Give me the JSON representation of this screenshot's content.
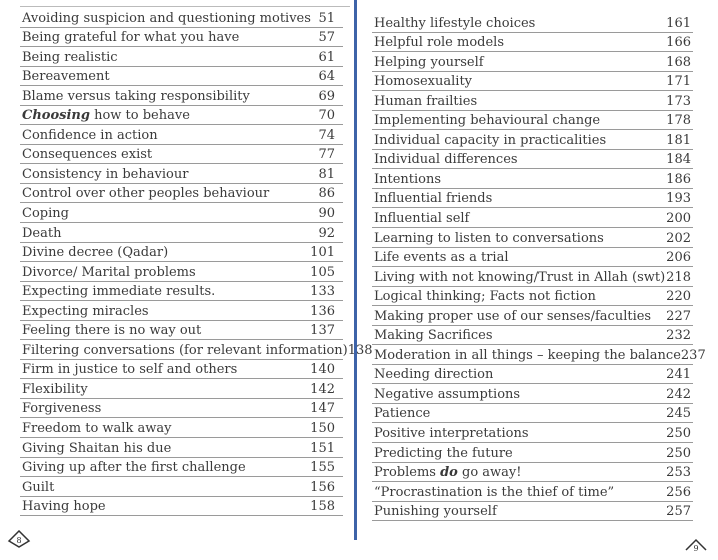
{
  "left_page": {
    "page_number": "8",
    "entries": [
      {
        "pre": "Avoiding suspicion and questioning motives",
        "em": "",
        "post": "",
        "page": "51"
      },
      {
        "pre": "Being grateful for what you have",
        "em": "",
        "post": "",
        "page": "57"
      },
      {
        "pre": "Being realistic",
        "em": "",
        "post": "",
        "page": "61"
      },
      {
        "pre": "Bereavement",
        "em": "",
        "post": "",
        "page": "64"
      },
      {
        "pre": "Blame versus taking responsibility",
        "em": "",
        "post": "",
        "page": "69"
      },
      {
        "pre": "",
        "em": "Choosing",
        "post": " how to behave",
        "page": "70"
      },
      {
        "pre": "Confidence in action",
        "em": "",
        "post": "",
        "page": "74"
      },
      {
        "pre": "Consequences exist",
        "em": "",
        "post": "",
        "page": "77"
      },
      {
        "pre": "Consistency in behaviour",
        "em": "",
        "post": "",
        "page": "81"
      },
      {
        "pre": "Control over other peoples behaviour",
        "em": "",
        "post": "",
        "page": "86"
      },
      {
        "pre": "Coping",
        "em": "",
        "post": "",
        "page": "90"
      },
      {
        "pre": "Death",
        "em": "",
        "post": "",
        "page": "92"
      },
      {
        "pre": "Divine decree (Qadar)",
        "em": "",
        "post": "",
        "page": "101"
      },
      {
        "pre": "Divorce/ Marital problems",
        "em": "",
        "post": "",
        "page": "105"
      },
      {
        "pre": "Expecting immediate results.",
        "em": "",
        "post": "",
        "page": "133"
      },
      {
        "pre": "Expecting miracles",
        "em": "",
        "post": "",
        "page": "136"
      },
      {
        "pre": "Feeling there is no way out",
        "em": "",
        "post": "",
        "page": "137"
      },
      {
        "pre": "Filtering conversations (for relevant information)",
        "em": "",
        "post": "",
        "page": "138"
      },
      {
        "pre": "Firm in justice  to self and others",
        "em": "",
        "post": "",
        "page": "140"
      },
      {
        "pre": "Flexibility",
        "em": "",
        "post": "",
        "page": "142"
      },
      {
        "pre": "Forgiveness",
        "em": "",
        "post": "",
        "page": "147"
      },
      {
        "pre": "Freedom to walk away",
        "em": "",
        "post": "",
        "page": "150"
      },
      {
        "pre": "Giving Shaitan his due",
        "em": "",
        "post": "",
        "page": "151"
      },
      {
        "pre": "Giving up after the first challenge",
        "em": "",
        "post": "",
        "page": "155"
      },
      {
        "pre": "Guilt",
        "em": "",
        "post": "",
        "page": "156"
      },
      {
        "pre": "Having hope",
        "em": "",
        "post": "",
        "page": "158"
      }
    ]
  },
  "right_page": {
    "page_number": "9",
    "entries": [
      {
        "pre": "Healthy lifestyle choices",
        "em": "",
        "post": "",
        "page": "161"
      },
      {
        "pre": "Helpful role models",
        "em": "",
        "post": "",
        "page": "166"
      },
      {
        "pre": "Helping yourself",
        "em": "",
        "post": "",
        "page": "168"
      },
      {
        "pre": "Homosexuality",
        "em": "",
        "post": "",
        "page": "171"
      },
      {
        "pre": "Human frailties",
        "em": "",
        "post": "",
        "page": "173"
      },
      {
        "pre": "Implementing  behavioural change",
        "em": "",
        "post": "",
        "page": "178"
      },
      {
        "pre": "Individual capacity in practicalities",
        "em": "",
        "post": "",
        "page": "181"
      },
      {
        "pre": "Individual differences",
        "em": "",
        "post": "",
        "page": "184"
      },
      {
        "pre": "Intentions",
        "em": "",
        "post": "",
        "page": "186"
      },
      {
        "pre": "Influential friends",
        "em": "",
        "post": "",
        "page": "193"
      },
      {
        "pre": "Influential self",
        "em": "",
        "post": "",
        "page": "200"
      },
      {
        "pre": "Learning to listen to conversations",
        "em": "",
        "post": "",
        "page": "202"
      },
      {
        "pre": "Life events as a trial",
        "em": "",
        "post": "",
        "page": "206"
      },
      {
        "pre": "Living with not knowing/Trust in Allah (swt)",
        "em": "",
        "post": "",
        "page": "218"
      },
      {
        "pre": "Logical thinking; Facts not fiction",
        "em": "",
        "post": "",
        "page": "220"
      },
      {
        "pre": "Making proper use of our senses/faculties",
        "em": "",
        "post": "",
        "page": "227"
      },
      {
        "pre": "Making Sacrifices",
        "em": "",
        "post": "",
        "page": "232"
      },
      {
        "pre": "Moderation in all things – keeping the balance",
        "em": "",
        "post": "",
        "page": "237"
      },
      {
        "pre": "Needing direction",
        "em": "",
        "post": "",
        "page": "241"
      },
      {
        "pre": "Negative assumptions",
        "em": "",
        "post": "",
        "page": "242"
      },
      {
        "pre": "Patience",
        "em": "",
        "post": "",
        "page": "245"
      },
      {
        "pre": "Positive interpretations",
        "em": "",
        "post": "",
        "page": "250"
      },
      {
        "pre": "Predicting the future",
        "em": "",
        "post": "",
        "page": "250"
      },
      {
        "pre": "Problems ",
        "em": "do",
        "post": " go away!",
        "page": "253"
      },
      {
        "pre": "“Procrastination is the thief of time”",
        "em": "",
        "post": "",
        "page": "256"
      },
      {
        "pre": "Punishing yourself",
        "em": "",
        "post": "",
        "page": "257"
      }
    ]
  },
  "colors": {
    "divider": "#3d63a8",
    "rule": "#9a9a9a",
    "text": "#3a3a3a"
  }
}
